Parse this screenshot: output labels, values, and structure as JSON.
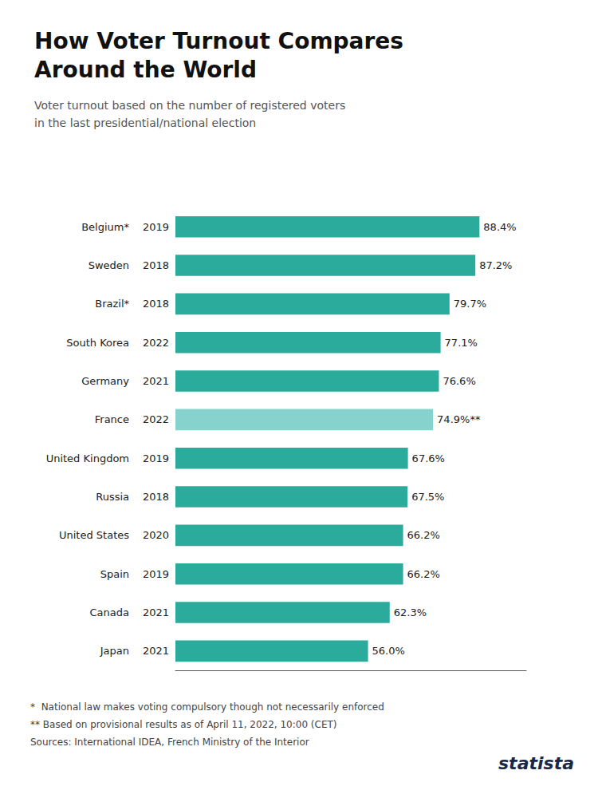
{
  "chart_data": {
    "type": "bar",
    "orientation": "horizontal",
    "title": "How Voter Turnout Compares\nAround the World",
    "subtitle": "Voter turnout based on the number of registered voters\nin the last presidential/national election",
    "categories": [
      "Belgium*",
      "Sweden",
      "Brazil*",
      "South Korea",
      "Germany",
      "France",
      "United Kingdom",
      "Russia",
      "United States",
      "Spain",
      "Canada",
      "Japan"
    ],
    "years": [
      2019,
      2018,
      2018,
      2022,
      2021,
      2022,
      2019,
      2018,
      2020,
      2019,
      2021,
      2021
    ],
    "values": [
      88.4,
      87.2,
      79.7,
      77.1,
      76.6,
      74.9,
      67.6,
      67.5,
      66.2,
      66.2,
      62.3,
      56.0
    ],
    "value_labels": [
      "88.4%",
      "87.2%",
      "79.7%",
      "77.1%",
      "76.6%",
      "74.9%**",
      "67.6%",
      "67.5%",
      "66.2%",
      "66.2%",
      "62.3%",
      "56.0%"
    ],
    "data_labels": true,
    "colors": [
      "#2aab9b",
      "#2aab9b",
      "#2aab9b",
      "#2aab9b",
      "#2aab9b",
      "#85d3cc",
      "#2aab9b",
      "#2aab9b",
      "#2aab9b",
      "#2aab9b",
      "#2aab9b",
      "#2aab9b"
    ],
    "xlim": [
      0,
      102
    ],
    "tick_labels": false,
    "grid": false,
    "annotations": [
      "*  National law makes voting compulsory though not necessarily enforced",
      "** Based on provisional results as of April 11, 2022, 10:00 (CET)",
      "Sources: International IDEA, French Ministry of the Interior",
      "statista"
    ]
  }
}
